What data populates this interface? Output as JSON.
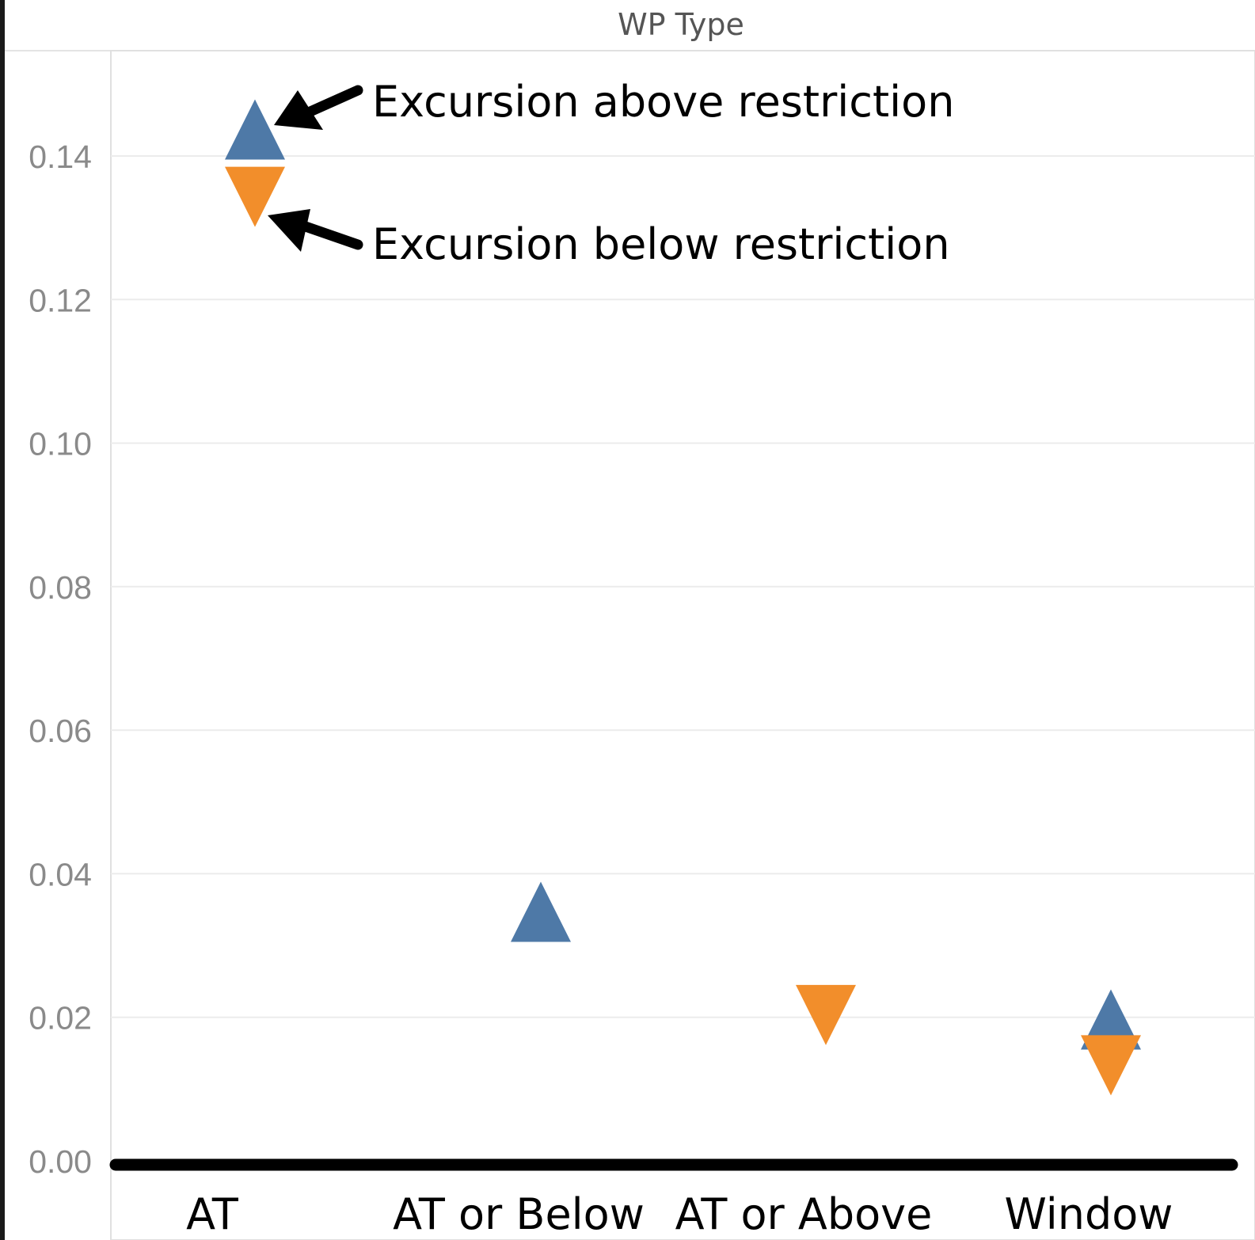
{
  "chart_data": {
    "type": "scatter",
    "title": "WP Type",
    "categories": [
      "AT",
      "AT or Below",
      "AT or Above",
      "Window"
    ],
    "ylim": [
      0,
      0.15
    ],
    "yticks": [
      "0.00",
      "0.02",
      "0.04",
      "0.06",
      "0.08",
      "0.10",
      "0.12",
      "0.14"
    ],
    "grid": true,
    "series": [
      {
        "marker": "triangle-up",
        "color": "#4e79a7",
        "values": [
          0.1395,
          0.0305,
          null,
          0.0155
        ]
      },
      {
        "marker": "triangle-down",
        "color": "#f28e2b",
        "values": [
          0.1385,
          null,
          0.0245,
          0.0175
        ]
      }
    ],
    "annotations": [
      {
        "text": "Excursion above restriction",
        "target_series": 0,
        "target_category": "AT"
      },
      {
        "text": "Excursion below restriction",
        "target_series": 1,
        "target_category": "AT"
      }
    ]
  }
}
